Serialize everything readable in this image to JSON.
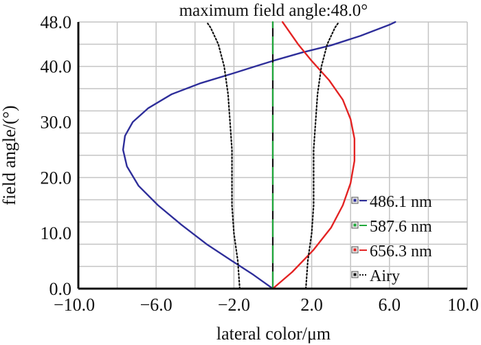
{
  "chart_data": {
    "type": "line",
    "title": "maximum field angle:48.0°",
    "xlabel": "lateral color/μm",
    "ylabel": "field angle/(°)",
    "xlim": [
      -10,
      10
    ],
    "ylim": [
      0,
      48
    ],
    "x_ticks": [
      -10,
      -6,
      -2,
      2,
      6,
      10
    ],
    "x_tick_labels": [
      "−10.0",
      "−6.0",
      "−2.0",
      "2.0",
      "6.0",
      "10.0"
    ],
    "y_ticks": [
      0,
      10,
      20,
      30,
      40,
      48
    ],
    "y_tick_labels": [
      "0.0",
      "10.0",
      "20.0",
      "30.0",
      "40.0",
      "48.0"
    ],
    "grid": true,
    "legend_position": "bottom-right",
    "series": [
      {
        "name": "486.1 nm",
        "color": "#2e2e9a",
        "style": "solid",
        "points": [
          [
            0,
            0
          ],
          [
            -1.0,
            2.5
          ],
          [
            -2.1,
            5.0
          ],
          [
            -3.4,
            8.0
          ],
          [
            -4.7,
            11.5
          ],
          [
            -5.9,
            15.0
          ],
          [
            -6.9,
            18.5
          ],
          [
            -7.5,
            22.0
          ],
          [
            -7.7,
            25.0
          ],
          [
            -7.6,
            27.5
          ],
          [
            -7.2,
            30.0
          ],
          [
            -6.4,
            32.5
          ],
          [
            -5.2,
            35.0
          ],
          [
            -3.7,
            37.0
          ],
          [
            -2.0,
            38.8
          ],
          [
            0.0,
            41.0
          ],
          [
            1.5,
            42.5
          ],
          [
            3.0,
            43.8
          ],
          [
            4.5,
            45.5
          ],
          [
            6.0,
            47.5
          ],
          [
            6.3,
            48.0
          ]
        ]
      },
      {
        "name": "587.6 nm",
        "color": "#1fa83a",
        "style": "dashed",
        "points": [
          [
            0,
            0
          ],
          [
            0,
            48
          ]
        ]
      },
      {
        "name": "656.3 nm",
        "color": "#e32323",
        "style": "solid",
        "points": [
          [
            0,
            0
          ],
          [
            1.0,
            3.0
          ],
          [
            2.1,
            7.0
          ],
          [
            3.0,
            11.0
          ],
          [
            3.6,
            15.0
          ],
          [
            4.0,
            19.0
          ],
          [
            4.2,
            23.0
          ],
          [
            4.2,
            27.0
          ],
          [
            4.0,
            30.5
          ],
          [
            3.6,
            34.0
          ],
          [
            2.9,
            37.5
          ],
          [
            2.0,
            41.0
          ],
          [
            1.3,
            44.0
          ],
          [
            0.7,
            47.0
          ],
          [
            0.5,
            48.0
          ]
        ]
      },
      {
        "name": "Airy",
        "color": "#111111",
        "style": "dotted",
        "points": [
          [
            1.7,
            0
          ],
          [
            1.8,
            5.0
          ],
          [
            2.0,
            10.0
          ],
          [
            2.1,
            15.0
          ],
          [
            2.1,
            20.0
          ],
          [
            2.1,
            25.0
          ],
          [
            2.2,
            30.0
          ],
          [
            2.3,
            35.0
          ],
          [
            2.5,
            40.0
          ],
          [
            2.8,
            44.0
          ],
          [
            3.2,
            47.0
          ],
          [
            3.4,
            48.0
          ]
        ]
      },
      {
        "name": "",
        "color": "#111111",
        "style": "dotted",
        "points": [
          [
            -1.7,
            0
          ],
          [
            -1.8,
            5.0
          ],
          [
            -2.0,
            10.0
          ],
          [
            -2.1,
            15.0
          ],
          [
            -2.1,
            20.0
          ],
          [
            -2.1,
            25.0
          ],
          [
            -2.2,
            30.0
          ],
          [
            -2.3,
            35.0
          ],
          [
            -2.5,
            40.0
          ],
          [
            -2.8,
            44.0
          ],
          [
            -3.2,
            47.0
          ],
          [
            -3.4,
            48.0
          ]
        ]
      }
    ]
  }
}
